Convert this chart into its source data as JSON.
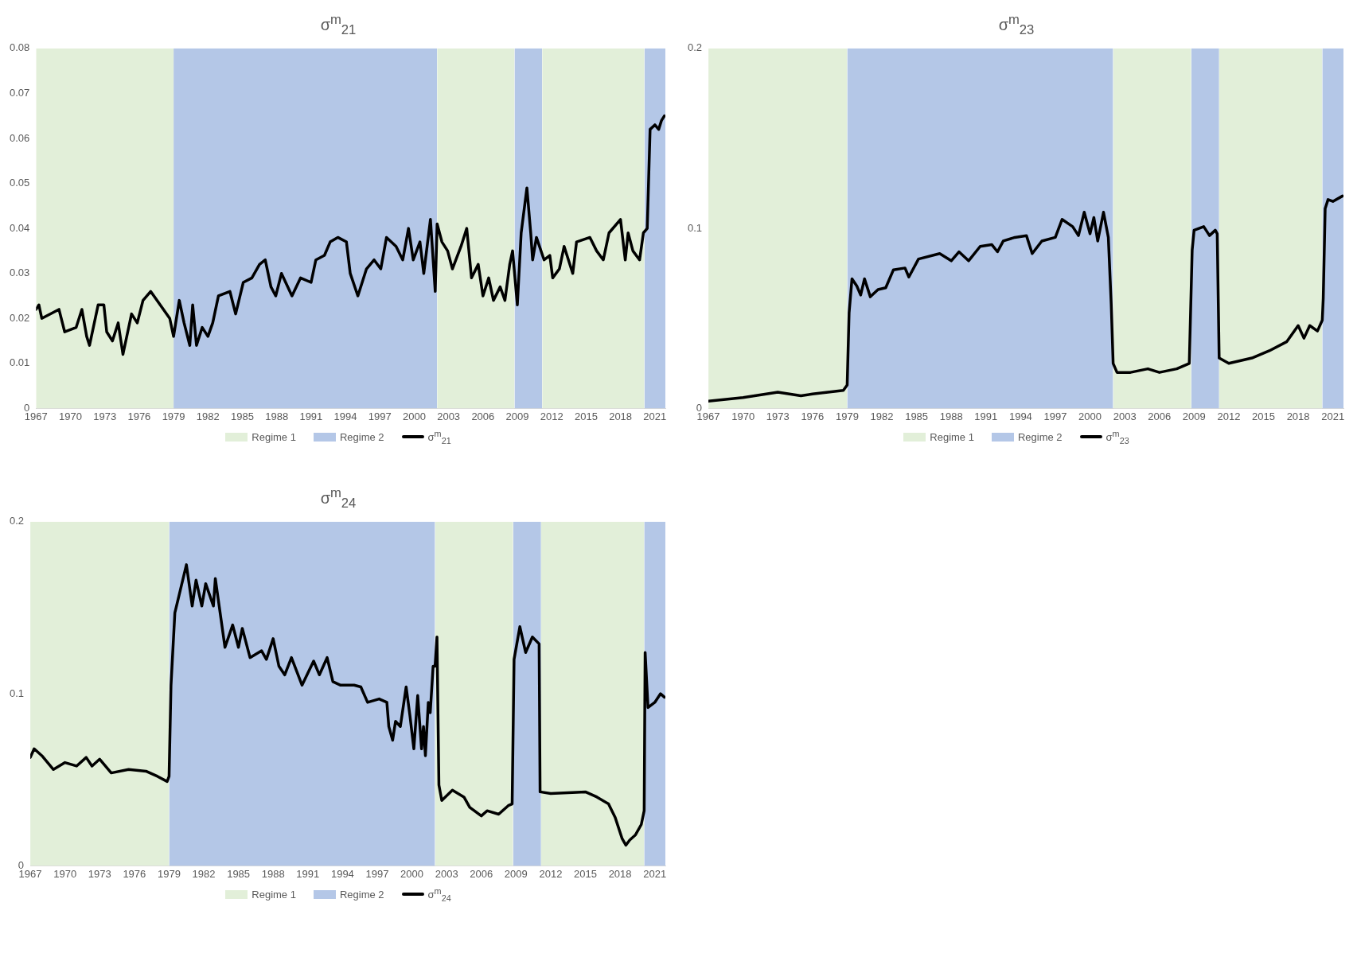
{
  "chart_data": [
    {
      "type": "line",
      "title": "σ$^{m}$$_{21}$",
      "xlim": [
        "1967-01",
        "2021-12"
      ],
      "xticks": [
        "1967",
        "1970",
        "1973",
        "1976",
        "1979",
        "1982",
        "1985",
        "1988",
        "1991",
        "1994",
        "1997",
        "2000",
        "2003",
        "2006",
        "2009",
        "2012",
        "2015",
        "2018",
        "2021"
      ],
      "ylim": [
        0,
        0.08
      ],
      "yticks": [
        0,
        0.01,
        0.02,
        0.03,
        0.04,
        0.05,
        0.06,
        0.07,
        0.08
      ],
      "grid": false,
      "legend": "bottom",
      "series": [
        {
          "name": "Regime 1",
          "type": "area",
          "color": "#e2efd9",
          "x": [
            "1967-01",
            "1979-01",
            "1990-01",
            "2002-01",
            "2008-10",
            "2010-01",
            "2011-03",
            "2020-02"
          ],
          "values": [
            0.08,
            0.08,
            null,
            0.08,
            0.08,
            null,
            0.08,
            0.08
          ]
        },
        {
          "name": "Regime 2",
          "type": "area",
          "color": "#b4c7e7",
          "x": [
            "1979-01",
            "2002-01",
            "2005-01",
            "2008-10",
            "2011-03",
            "2015-01",
            "2020-02",
            "2021-12"
          ],
          "values": [
            0.08,
            0.08,
            null,
            0.08,
            0.08,
            null,
            0.08,
            0.08
          ]
        },
        {
          "name": "σ$^{m}$$_{21}$",
          "type": "line",
          "color": "#000000",
          "x": [
            "1967-01",
            "1967-04",
            "1967-07",
            "1969-01",
            "1969-07",
            "1970-07",
            "1971-01",
            "1971-06",
            "1971-09",
            "1972-06",
            "1972-12",
            "1973-03",
            "1973-09",
            "1974-03",
            "1974-08",
            "1975-05",
            "1975-11",
            "1976-05",
            "1977-01",
            "1977-11",
            "1978-09",
            "1979-01",
            "1979-07",
            "1979-12",
            "1980-06",
            "1980-09",
            "1981-01",
            "1981-07",
            "1982-01",
            "1982-06",
            "1982-12",
            "1983-12",
            "1984-06",
            "1985-02",
            "1985-11",
            "1986-07",
            "1987-01",
            "1987-07",
            "1987-12",
            "1988-06",
            "1989-05",
            "1990-02",
            "1991-01",
            "1991-06",
            "1992-03",
            "1992-09",
            "1993-05",
            "1994-02",
            "1994-06",
            "1995-02",
            "1995-11",
            "1996-07",
            "1997-02",
            "1997-08",
            "1998-06",
            "1999-01",
            "1999-07",
            "1999-12",
            "2000-07",
            "2000-11",
            "2001-06",
            "2001-11",
            "2002-01",
            "2002-06",
            "2002-12",
            "2003-05",
            "2004-02",
            "2004-08",
            "2005-01",
            "2005-08",
            "2006-01",
            "2006-07",
            "2006-12",
            "2007-07",
            "2007-12",
            "2008-05",
            "2008-08",
            "2009-01",
            "2009-05",
            "2009-11",
            "2010-03",
            "2010-05",
            "2010-09",
            "2011-05",
            "2011-11",
            "2012-02",
            "2012-09",
            "2013-02",
            "2013-11",
            "2014-03",
            "2015-05",
            "2015-12",
            "2016-07",
            "2017-01",
            "2018-01",
            "2018-06",
            "2018-09",
            "2019-02",
            "2019-09",
            "2020-01",
            "2020-05",
            "2020-08",
            "2021-01",
            "2021-05",
            "2021-08",
            "2021-11"
          ],
          "values": [
            0.022,
            0.023,
            0.02,
            0.022,
            0.017,
            0.018,
            0.022,
            0.016,
            0.014,
            0.023,
            0.023,
            0.017,
            0.015,
            0.019,
            0.012,
            0.021,
            0.019,
            0.024,
            0.026,
            0.023,
            0.02,
            0.016,
            0.024,
            0.019,
            0.014,
            0.023,
            0.014,
            0.018,
            0.016,
            0.019,
            0.025,
            0.026,
            0.021,
            0.028,
            0.029,
            0.032,
            0.033,
            0.027,
            0.025,
            0.03,
            0.025,
            0.029,
            0.028,
            0.033,
            0.034,
            0.037,
            0.038,
            0.037,
            0.03,
            0.025,
            0.031,
            0.033,
            0.031,
            0.038,
            0.036,
            0.033,
            0.04,
            0.033,
            0.037,
            0.03,
            0.042,
            0.026,
            0.041,
            0.037,
            0.035,
            0.031,
            0.036,
            0.04,
            0.029,
            0.032,
            0.025,
            0.029,
            0.024,
            0.027,
            0.024,
            0.032,
            0.035,
            0.023,
            0.039,
            0.049,
            0.039,
            0.033,
            0.038,
            0.033,
            0.034,
            0.029,
            0.031,
            0.036,
            0.03,
            0.037,
            0.038,
            0.035,
            0.033,
            0.039,
            0.042,
            0.033,
            0.039,
            0.035,
            0.033,
            0.039,
            0.04,
            0.062,
            0.063,
            0.062,
            0.064,
            0.065
          ]
        }
      ]
    },
    {
      "type": "line",
      "title": "σ$^{m}$$_{23}$",
      "xlim": [
        "1967-01",
        "2021-12"
      ],
      "xticks": [
        "1967",
        "1970",
        "1973",
        "1976",
        "1979",
        "1982",
        "1985",
        "1988",
        "1991",
        "1994",
        "1997",
        "2000",
        "2003",
        "2006",
        "2009",
        "2012",
        "2015",
        "2018",
        "2021"
      ],
      "ylim": [
        0,
        0.2
      ],
      "yticks": [
        0,
        0.1,
        0.2
      ],
      "grid": false,
      "legend": "bottom",
      "series": [
        {
          "name": "Regime 1",
          "type": "area",
          "color": "#e2efd9",
          "x": [
            "1967-01",
            "1979-01",
            "1990-01",
            "2002-01",
            "2008-10",
            "2010-01",
            "2011-03",
            "2020-02"
          ],
          "values": [
            0.2,
            0.2,
            null,
            0.2,
            0.2,
            null,
            0.2,
            0.2
          ]
        },
        {
          "name": "Regime 2",
          "type": "area",
          "color": "#b4c7e7",
          "x": [
            "1979-01",
            "2002-01",
            "2005-01",
            "2008-10",
            "2011-03",
            "2015-01",
            "2020-02",
            "2021-12"
          ],
          "values": [
            0.2,
            0.2,
            null,
            0.2,
            0.2,
            null,
            0.2,
            0.2
          ]
        },
        {
          "name": "σ$^{m}$$_{23}$",
          "type": "line",
          "color": "#000000",
          "x": [
            "1967-01",
            "1970-01",
            "1973-01",
            "1975-01",
            "1976-01",
            "1978-09",
            "1979-01",
            "1979-03",
            "1979-06",
            "1979-11",
            "1980-03",
            "1980-07",
            "1981-01",
            "1981-09",
            "1982-05",
            "1983-01",
            "1984-01",
            "1984-05",
            "1985-03",
            "1987-01",
            "1988-01",
            "1988-09",
            "1989-07",
            "1990-07",
            "1991-07",
            "1992-01",
            "1992-07",
            "1993-07",
            "1994-07",
            "1995-01",
            "1995-11",
            "1997-01",
            "1997-08",
            "1998-07",
            "1999-01",
            "1999-07",
            "2000-01",
            "2000-05",
            "2000-09",
            "2001-03",
            "2001-08",
            "2001-11",
            "2002-01",
            "2002-05",
            "2003-07",
            "2005-01",
            "2006-01",
            "2007-07",
            "2008-08",
            "2008-11",
            "2009-01",
            "2009-11",
            "2010-05",
            "2010-11",
            "2011-01",
            "2011-03",
            "2012-01",
            "2014-01",
            "2015-07",
            "2017-01",
            "2018-01",
            "2018-07",
            "2019-01",
            "2019-09",
            "2020-02",
            "2020-03",
            "2020-05",
            "2020-08",
            "2021-01",
            "2021-11"
          ],
          "values": [
            0.004,
            0.006,
            0.009,
            0.007,
            0.008,
            0.01,
            0.013,
            0.053,
            0.072,
            0.068,
            0.063,
            0.072,
            0.062,
            0.066,
            0.067,
            0.077,
            0.078,
            0.073,
            0.083,
            0.086,
            0.082,
            0.087,
            0.082,
            0.09,
            0.091,
            0.087,
            0.093,
            0.095,
            0.096,
            0.086,
            0.093,
            0.095,
            0.105,
            0.101,
            0.096,
            0.109,
            0.097,
            0.106,
            0.093,
            0.109,
            0.095,
            0.058,
            0.025,
            0.02,
            0.02,
            0.022,
            0.02,
            0.022,
            0.025,
            0.088,
            0.099,
            0.101,
            0.096,
            0.099,
            0.097,
            0.028,
            0.025,
            0.028,
            0.032,
            0.037,
            0.046,
            0.039,
            0.046,
            0.043,
            0.049,
            0.061,
            0.111,
            0.116,
            0.115,
            0.118
          ]
        }
      ]
    },
    {
      "type": "line",
      "title": "σ$^{m}$$_{24}$",
      "xlim": [
        "1967-01",
        "2021-12"
      ],
      "xticks": [
        "1967",
        "1970",
        "1973",
        "1976",
        "1979",
        "1982",
        "1985",
        "1988",
        "1991",
        "1994",
        "1997",
        "2000",
        "2003",
        "2006",
        "2009",
        "2012",
        "2015",
        "2018",
        "2021"
      ],
      "ylim": [
        0,
        0.2
      ],
      "yticks": [
        0,
        0.1,
        0.2
      ],
      "grid": false,
      "legend": "bottom",
      "series": [
        {
          "name": "Regime 1",
          "type": "area",
          "color": "#e2efd9",
          "x": [
            "1967-01",
            "1979-01",
            "1990-01",
            "2002-01",
            "2008-10",
            "2010-01",
            "2011-03",
            "2020-02"
          ],
          "values": [
            0.2,
            0.2,
            null,
            0.2,
            0.2,
            null,
            0.2,
            0.2
          ]
        },
        {
          "name": "Regime 2",
          "type": "area",
          "color": "#b4c7e7",
          "x": [
            "1979-01",
            "2002-01",
            "2005-01",
            "2008-10",
            "2011-03",
            "2015-01",
            "2020-02",
            "2021-12"
          ],
          "values": [
            0.2,
            0.2,
            null,
            0.2,
            0.2,
            null,
            0.2,
            0.2
          ]
        },
        {
          "name": "σ$^{m}$$_{24}$",
          "type": "line",
          "color": "#000000",
          "x": [
            "1967-01",
            "1967-05",
            "1968-01",
            "1969-01",
            "1970-01",
            "1971-01",
            "1971-11",
            "1972-05",
            "1973-01",
            "1974-01",
            "1975-07",
            "1977-01",
            "1978-01",
            "1978-11",
            "1979-01",
            "1979-03",
            "1979-07",
            "1980-01",
            "1980-07",
            "1981-01",
            "1981-05",
            "1981-11",
            "1982-03",
            "1982-11",
            "1983-01",
            "1983-07",
            "1983-11",
            "1984-07",
            "1985-01",
            "1985-05",
            "1986-01",
            "1987-01",
            "1987-06",
            "1988-01",
            "1988-07",
            "1989-01",
            "1989-08",
            "1990-07",
            "1991-07",
            "1992-01",
            "1992-09",
            "1993-03",
            "1993-11",
            "1995-01",
            "1995-08",
            "1996-03",
            "1997-03",
            "1997-11",
            "1998-01",
            "1998-05",
            "1998-08",
            "1999-01",
            "1999-07",
            "1999-11",
            "2000-03",
            "2000-07",
            "2000-11",
            "2001-01",
            "2001-03",
            "2001-06",
            "2001-08",
            "2001-11",
            "2002-01",
            "2002-03",
            "2002-05",
            "2002-08",
            "2003-07",
            "2004-07",
            "2005-01",
            "2006-01",
            "2006-07",
            "2007-07",
            "2008-05",
            "2008-09",
            "2008-11",
            "2009-05",
            "2009-11",
            "2010-06",
            "2011-01",
            "2011-02",
            "2012-01",
            "2015-01",
            "2016-01",
            "2017-01",
            "2017-08",
            "2018-03",
            "2018-07",
            "2018-11",
            "2019-05",
            "2019-11",
            "2020-02",
            "2020-03",
            "2020-06",
            "2021-01",
            "2021-07",
            "2021-11"
          ],
          "values": [
            0.063,
            0.068,
            0.064,
            0.056,
            0.06,
            0.058,
            0.063,
            0.058,
            0.062,
            0.054,
            0.056,
            0.055,
            0.052,
            0.049,
            0.052,
            0.105,
            0.147,
            0.161,
            0.175,
            0.151,
            0.166,
            0.151,
            0.164,
            0.151,
            0.167,
            0.143,
            0.127,
            0.14,
            0.127,
            0.138,
            0.121,
            0.125,
            0.12,
            0.132,
            0.116,
            0.111,
            0.121,
            0.105,
            0.119,
            0.111,
            0.121,
            0.107,
            0.105,
            0.105,
            0.104,
            0.095,
            0.097,
            0.095,
            0.081,
            0.073,
            0.084,
            0.081,
            0.104,
            0.087,
            0.068,
            0.099,
            0.068,
            0.081,
            0.064,
            0.095,
            0.089,
            0.116,
            0.116,
            0.133,
            0.047,
            0.038,
            0.044,
            0.04,
            0.034,
            0.029,
            0.032,
            0.03,
            0.035,
            0.036,
            0.12,
            0.139,
            0.124,
            0.133,
            0.129,
            0.043,
            0.042,
            0.043,
            0.04,
            0.036,
            0.028,
            0.016,
            0.012,
            0.015,
            0.018,
            0.024,
            0.032,
            0.124,
            0.092,
            0.095,
            0.1,
            0.098
          ]
        }
      ]
    }
  ]
}
